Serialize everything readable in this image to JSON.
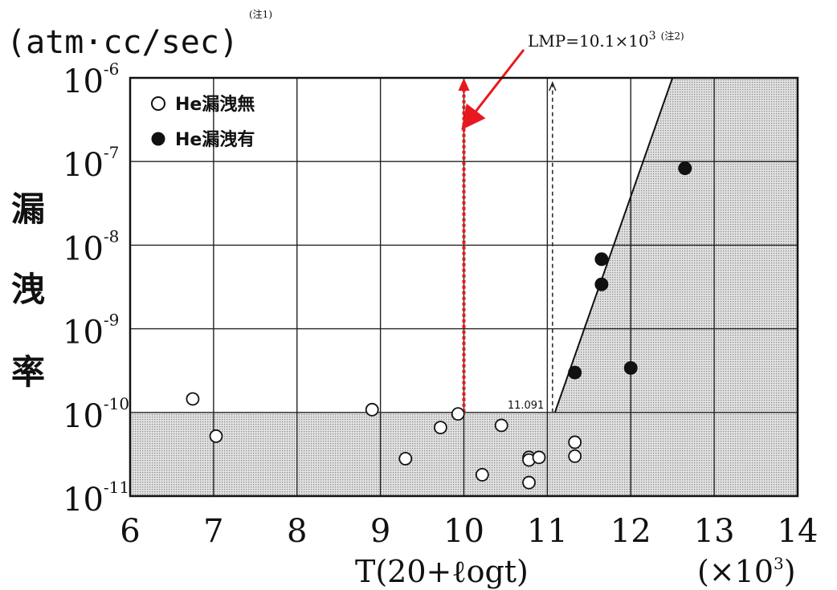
{
  "chart_data": {
    "type": "scatter",
    "ylabel_unit": "(atm·cc/sec)",
    "ylabel_unit_note": "(注1)",
    "ylabel": [
      "漏",
      "洩",
      "率"
    ],
    "xlabel": "T(20+ℓogt)",
    "xlabel_multiplier": "(×10",
    "xlabel_multiplier_exp": "3",
    "xlabel_multiplier_close": ")",
    "x_ticks": [
      "6",
      "7",
      "8",
      "9",
      "10",
      "11",
      "12",
      "13",
      "14"
    ],
    "xlim": [
      6,
      14
    ],
    "ylim": [
      1e-11,
      1e-06
    ],
    "y_scale": "log",
    "y_ticks": [
      {
        "base": "10",
        "exp": "-6",
        "value": 1e-06
      },
      {
        "base": "10",
        "exp": "-7",
        "value": 1e-07
      },
      {
        "base": "10",
        "exp": "-8",
        "value": 1e-08
      },
      {
        "base": "10",
        "exp": "-9",
        "value": 1e-09
      },
      {
        "base": "10",
        "exp": "-10",
        "value": 1e-10
      },
      {
        "base": "10",
        "exp": "-11",
        "value": 1e-11
      }
    ],
    "grid": true,
    "legend_position": "top-left",
    "series": [
      {
        "name": "He漏洩無",
        "marker": "open-circle",
        "points": [
          [
            6.75,
            1.45e-10
          ],
          [
            7.03,
            5.2e-11
          ],
          [
            8.9,
            1.08e-10
          ],
          [
            9.3,
            2.8e-11
          ],
          [
            9.72,
            6.6e-11
          ],
          [
            9.93,
            9.6e-11
          ],
          [
            10.22,
            1.8e-11
          ],
          [
            10.45,
            7e-11
          ],
          [
            10.78,
            2.9e-11
          ],
          [
            10.78,
            2.7e-11
          ],
          [
            10.78,
            1.45e-11
          ],
          [
            10.9,
            2.9e-11
          ],
          [
            11.33,
            4.4e-11
          ],
          [
            11.33,
            3e-11
          ]
        ]
      },
      {
        "name": "He漏洩有",
        "marker": "filled-circle",
        "points": [
          [
            11.33,
            3e-10
          ],
          [
            11.65,
            6.8e-09
          ],
          [
            11.65,
            3.4e-09
          ],
          [
            12.0,
            3.4e-10
          ],
          [
            12.65,
            8.3e-08
          ]
        ]
      }
    ],
    "boundary_line": {
      "from": [
        11.091,
        1e-10
      ],
      "to": [
        12.5,
        1e-06
      ]
    },
    "shaded_region": "leak-rate below 1e-10 and region right of boundary line",
    "annotations": {
      "lmp_label": "LMP=10.1×10",
      "lmp_exp": "3",
      "lmp_note": "(注2)",
      "lmp_x": 10.0,
      "threshold_label": "11.091",
      "threshold_x": 11.091
    },
    "colors": {
      "lmp_line": "#e8191e",
      "shade": "#d3d3d3",
      "axes": "#111111"
    }
  }
}
